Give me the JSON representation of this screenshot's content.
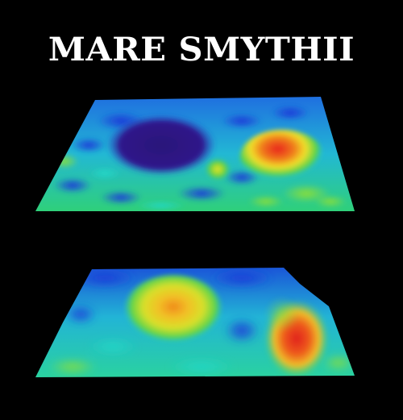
{
  "title": "MARE SMYTHII",
  "colors": {
    "background": "#000000",
    "title": "#ffffff",
    "low": "#2a147a",
    "mid_low": "#1f5fe0",
    "mid": "#22c7d8",
    "mid_high": "#33d65a",
    "high": "#f2e02a",
    "peak": "#e8281c"
  },
  "surfaces": [
    {
      "name": "top-surface-map",
      "description_icon": "topographic-surface"
    },
    {
      "name": "bottom-surface-map",
      "description_icon": "gravity-surface"
    }
  ]
}
